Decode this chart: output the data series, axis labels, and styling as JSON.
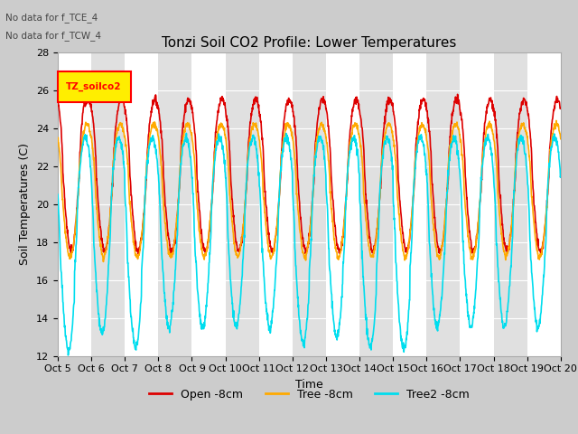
{
  "title": "Tonzi Soil CO2 Profile: Lower Temperatures",
  "xlabel": "Time",
  "ylabel": "Soil Temperatures (C)",
  "ylim": [
    12,
    28
  ],
  "annotation_lines": [
    "No data for f_TCE_4",
    "No data for f_TCW_4"
  ],
  "legend_label": "TZ_soilco2",
  "xtick_labels": [
    "Oct 5",
    "Oct 6",
    "Oct 7",
    "Oct 8",
    "Oct 9",
    "Oct 10",
    "Oct 11",
    "Oct 12",
    "Oct 13",
    "Oct 14",
    "Oct 15",
    "Oct 16",
    "Oct 17",
    "Oct 18",
    "Oct 19",
    "Oct 20"
  ],
  "series": [
    {
      "label": "Open -8cm",
      "color": "#dd0000",
      "lw": 1.2
    },
    {
      "label": "Tree -8cm",
      "color": "#ffaa00",
      "lw": 1.2
    },
    {
      "label": "Tree2 -8cm",
      "color": "#00ddee",
      "lw": 1.2
    }
  ],
  "title_fontsize": 11,
  "tick_fontsize": 8,
  "label_fontsize": 9
}
